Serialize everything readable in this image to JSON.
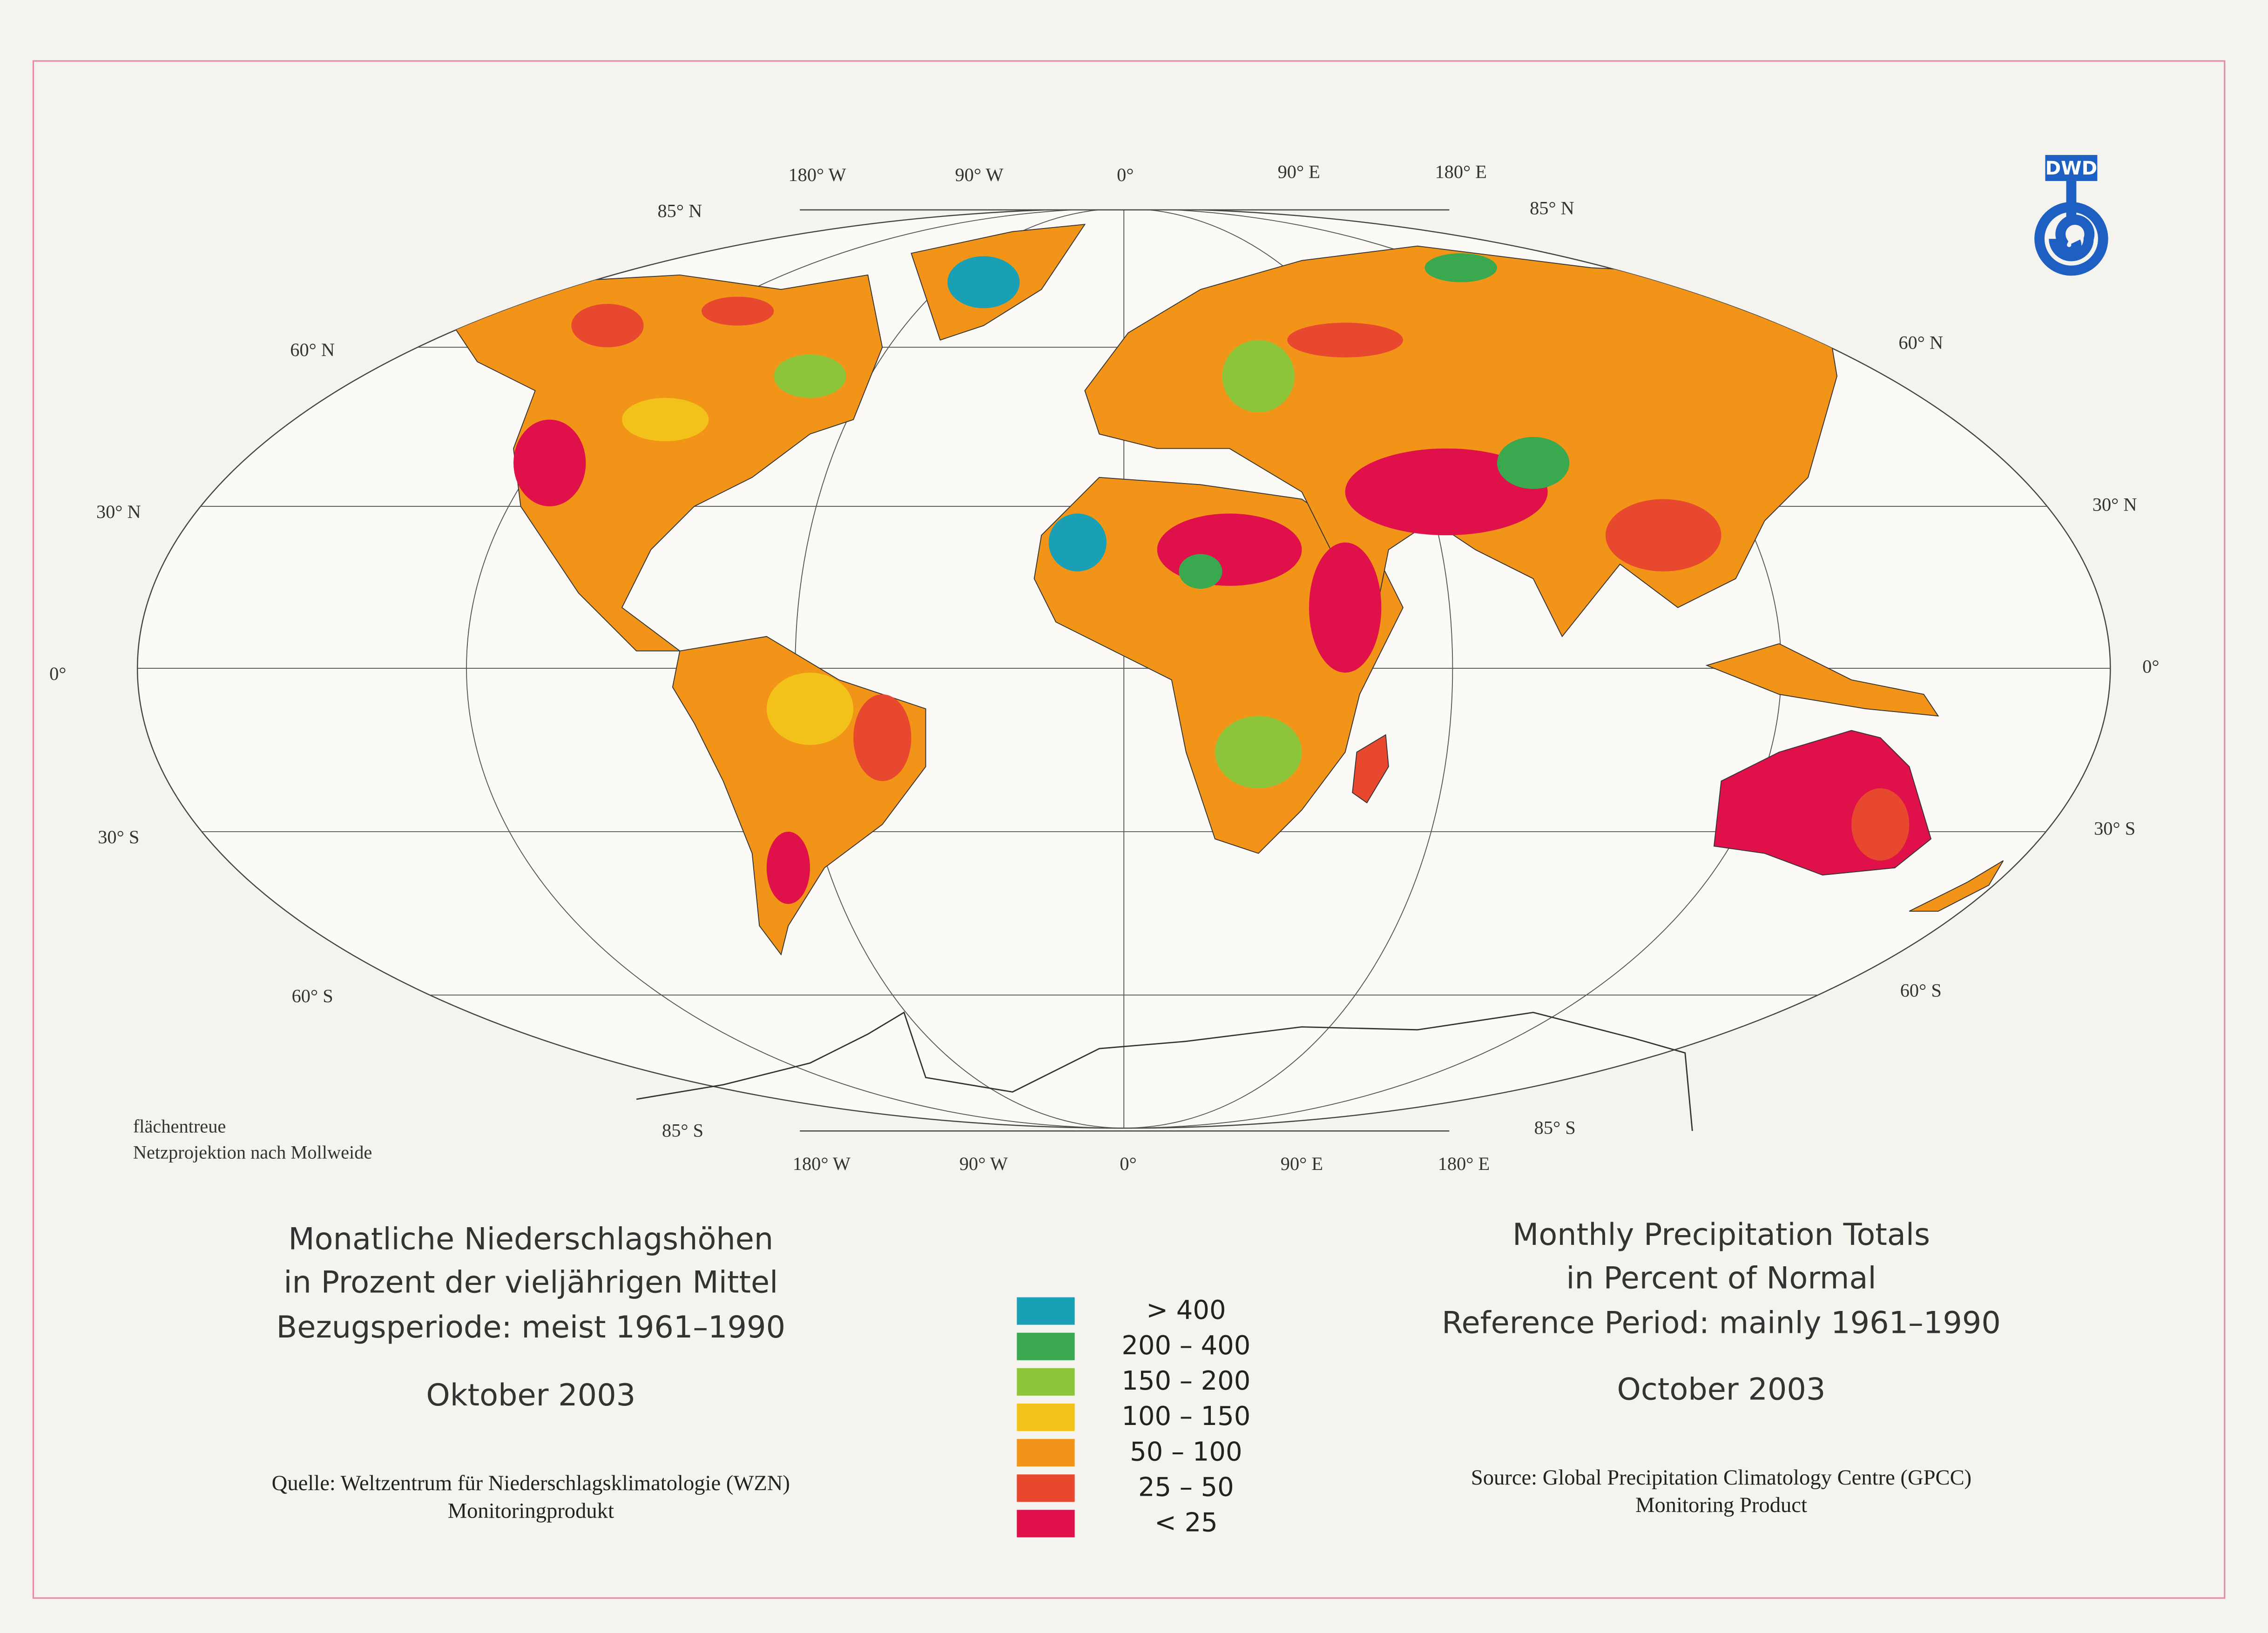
{
  "map": {
    "lon_labels_top": [
      "180° W",
      "90° W",
      "0°",
      "90° E",
      "180° E"
    ],
    "lon_labels_bottom": [
      "180° W",
      "90° W",
      "0°",
      "90° E",
      "180° E"
    ],
    "lat_labels_left": [
      "85° N",
      "60° N",
      "30° N",
      "0°",
      "30° S",
      "60° S",
      "85° S"
    ],
    "lat_labels_right": [
      "85° N",
      "60° N",
      "30° N",
      "0°",
      "30° S",
      "60° S",
      "85° S"
    ],
    "projection_note": [
      "flächentreue",
      "Netzprojektion nach Mollweide"
    ]
  },
  "logo": "DWD",
  "title_de": {
    "lines": [
      "Monatliche Niederschlagshöhen",
      "in Prozent der vieljährigen Mittel",
      "Bezugsperiode: meist 1961–1990"
    ],
    "month": "Oktober 2003",
    "source": [
      "Quelle: Weltzentrum für Niederschlagsklimatologie (WZN)",
      "Monitoringprodukt"
    ]
  },
  "title_en": {
    "lines": [
      "Monthly Precipitation Totals",
      "in Percent of Normal",
      "Reference Period: mainly 1961–1990"
    ],
    "month": "October 2003",
    "source": [
      "Source: Global Precipitation Climatology Centre (GPCC)",
      "Monitoring Product"
    ]
  },
  "legend": {
    "items": [
      {
        "label": ">    400",
        "color": "#1aa0b5"
      },
      {
        "label": "200 – 400",
        "color": "#3aa84e"
      },
      {
        "label": "150 – 200",
        "color": "#8cc43a"
      },
      {
        "label": "100 – 150",
        "color": "#f2c21a"
      },
      {
        "label": "50 – 100",
        "color": "#f29418"
      },
      {
        "label": "25 –   50",
        "color": "#e8482e"
      },
      {
        "label": "<    25",
        "color": "#e0104a"
      }
    ]
  }
}
